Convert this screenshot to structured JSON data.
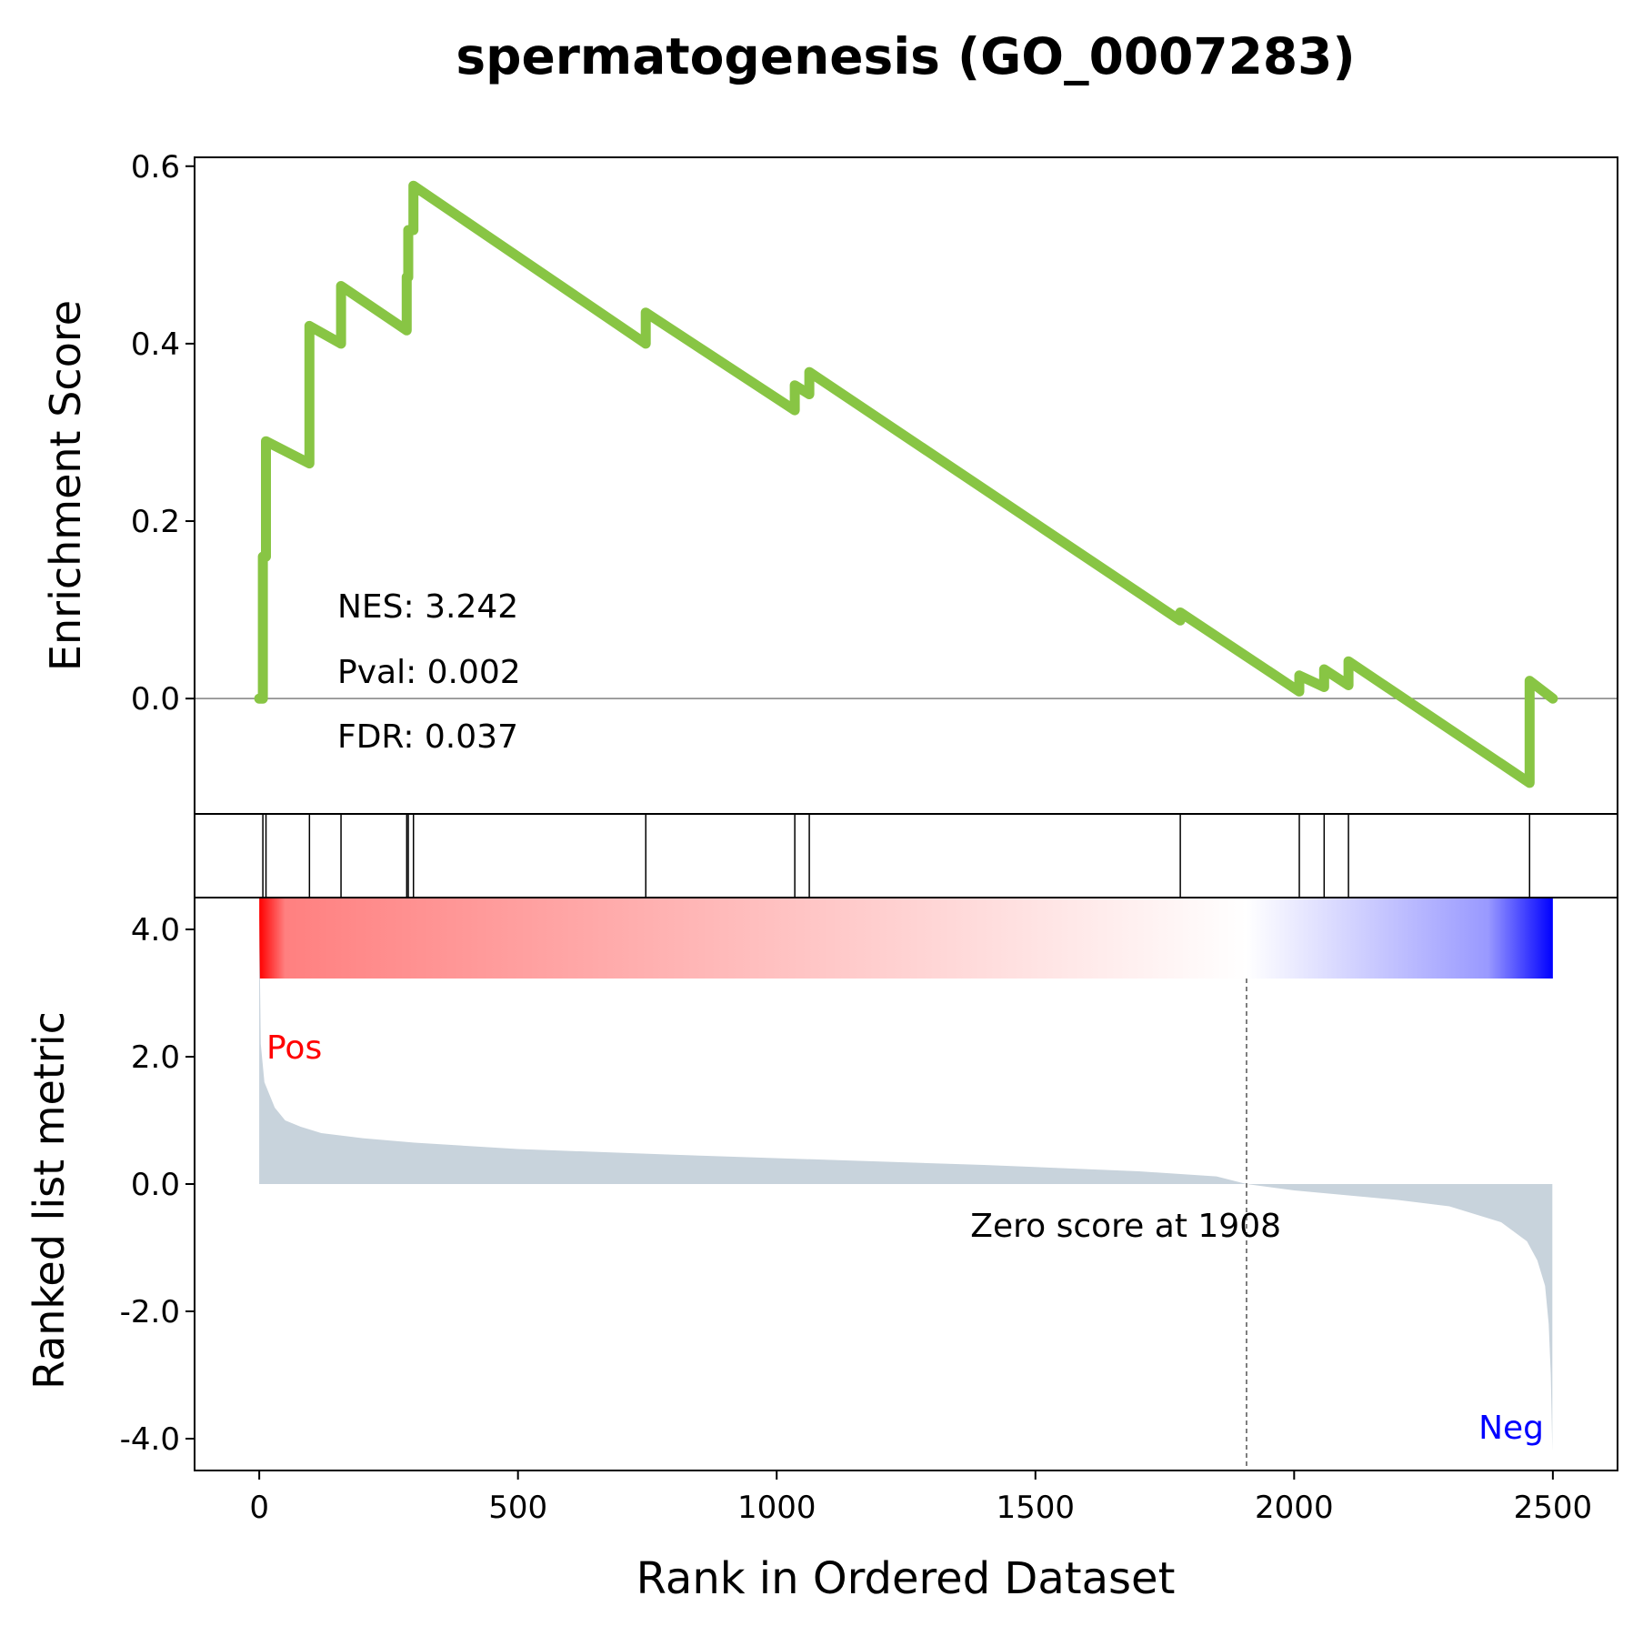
{
  "chart_data": {
    "type": "line",
    "title": "spermatogenesis (GO_0007283)",
    "es_panel": {
      "ylabel": "Enrichment Score",
      "ylim": [
        -0.13,
        0.61
      ],
      "yticks": [
        0.0,
        0.2,
        0.4,
        0.6
      ],
      "ytick_labels": [
        "0.0",
        "0.2",
        "0.4",
        "0.6"
      ],
      "line_color": "#88c544",
      "points": [
        [
          0,
          0.0
        ],
        [
          7,
          0.0
        ],
        [
          7,
          0.16
        ],
        [
          13,
          0.16
        ],
        [
          13,
          0.29
        ],
        [
          97,
          0.265
        ],
        [
          97,
          0.42
        ],
        [
          158,
          0.4
        ],
        [
          158,
          0.465
        ],
        [
          285,
          0.415
        ],
        [
          285,
          0.475
        ],
        [
          288,
          0.475
        ],
        [
          288,
          0.528
        ],
        [
          298,
          0.528
        ],
        [
          298,
          0.578
        ],
        [
          747,
          0.4
        ],
        [
          747,
          0.435
        ],
        [
          1035,
          0.325
        ],
        [
          1035,
          0.353
        ],
        [
          1063,
          0.343
        ],
        [
          1063,
          0.368
        ],
        [
          1780,
          0.088
        ],
        [
          1780,
          0.097
        ],
        [
          2010,
          0.008
        ],
        [
          2010,
          0.026
        ],
        [
          2058,
          0.013
        ],
        [
          2058,
          0.033
        ],
        [
          2105,
          0.015
        ],
        [
          2105,
          0.042
        ],
        [
          2455,
          -0.095
        ],
        [
          2455,
          0.02
        ],
        [
          2500,
          0.0
        ]
      ],
      "stats": [
        "NES: 3.242",
        "Pval: 0.002",
        "FDR: 0.037"
      ]
    },
    "hits": [
      7,
      13,
      97,
      158,
      285,
      288,
      298,
      747,
      1035,
      1063,
      1780,
      2010,
      2058,
      2105,
      2455
    ],
    "colorbar": {
      "from": "#ff0000",
      "mid": "#ffffff",
      "to": "#0000ff",
      "zero_rank": 1908
    },
    "ranked_panel": {
      "ylabel": "Ranked list metric",
      "ylim": [
        -4.5,
        4.5
      ],
      "yticks": [
        -4.0,
        -2.0,
        0.0,
        2.0,
        4.0
      ],
      "ytick_labels": [
        "-4.0",
        "-2.0",
        "0.0",
        "2.0",
        "4.0"
      ],
      "fill_color": "#c8d3dc",
      "profile": [
        [
          0,
          4.2
        ],
        [
          3,
          2.2
        ],
        [
          10,
          1.6
        ],
        [
          20,
          1.4
        ],
        [
          30,
          1.2
        ],
        [
          50,
          1.0
        ],
        [
          80,
          0.9
        ],
        [
          120,
          0.8
        ],
        [
          200,
          0.72
        ],
        [
          300,
          0.65
        ],
        [
          500,
          0.55
        ],
        [
          800,
          0.46
        ],
        [
          1100,
          0.38
        ],
        [
          1400,
          0.3
        ],
        [
          1700,
          0.2
        ],
        [
          1850,
          0.12
        ],
        [
          1908,
          0.0
        ],
        [
          2000,
          -0.1
        ],
        [
          2200,
          -0.25
        ],
        [
          2300,
          -0.35
        ],
        [
          2400,
          -0.6
        ],
        [
          2450,
          -0.9
        ],
        [
          2470,
          -1.2
        ],
        [
          2485,
          -1.6
        ],
        [
          2492,
          -2.2
        ],
        [
          2496,
          -3.0
        ],
        [
          2499,
          -4.2
        ]
      ],
      "pos_label": "Pos",
      "neg_label": "Neg",
      "pos_color": "#ff0000",
      "neg_color": "#0000ff",
      "zero_text": "Zero score at 1908",
      "zero_rank": 1908
    },
    "x_axis": {
      "label": "Rank in Ordered Dataset",
      "xlim": [
        -125,
        2625
      ],
      "ticks": [
        0,
        500,
        1000,
        1500,
        2000,
        2500
      ],
      "tick_labels": [
        "0",
        "500",
        "1000",
        "1500",
        "2000",
        "2500"
      ]
    }
  }
}
